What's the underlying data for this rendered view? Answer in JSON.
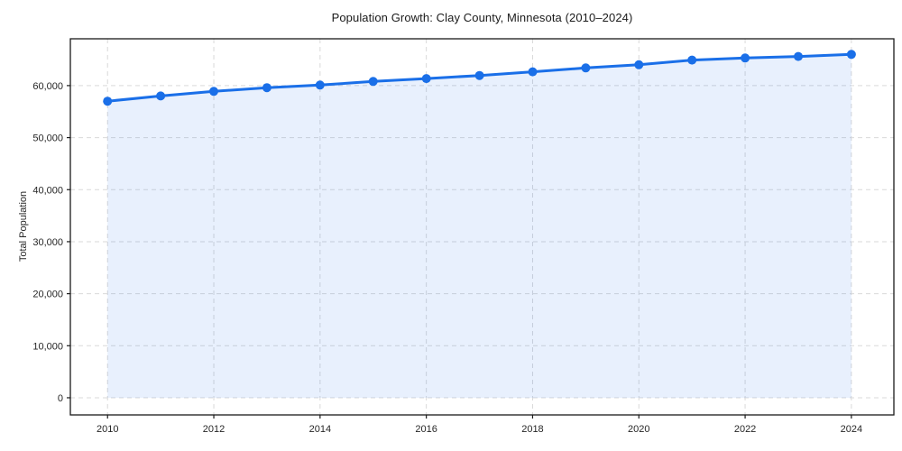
{
  "chart_data": {
    "type": "line",
    "title": "Population Growth: Clay County, Minnesota (2010–2024)",
    "xlabel": "",
    "ylabel": "Total Population",
    "x": [
      2010,
      2011,
      2012,
      2013,
      2014,
      2015,
      2016,
      2017,
      2018,
      2019,
      2020,
      2021,
      2022,
      2023,
      2024
    ],
    "values": [
      57000,
      58000,
      58900,
      59600,
      60100,
      60800,
      61350,
      61950,
      62650,
      63400,
      64000,
      64900,
      65300,
      65600,
      66000
    ],
    "series_name": "Total Population",
    "xticks": [
      2010,
      2012,
      2014,
      2016,
      2018,
      2020,
      2022,
      2024
    ],
    "xtick_labels": [
      "2010",
      "2012",
      "2014",
      "2016",
      "2018",
      "2020",
      "2022",
      "2024"
    ],
    "yticks": [
      0,
      10000,
      20000,
      30000,
      40000,
      50000,
      60000
    ],
    "ytick_labels": [
      "0",
      "10,000",
      "20,000",
      "30,000",
      "40,000",
      "50,000",
      "60,000"
    ],
    "xlim": [
      2009.3,
      2024.8
    ],
    "ylim": [
      -3300,
      69000
    ],
    "fill_baseline": 0,
    "grid": true,
    "legend_position": "none",
    "marker": "circle",
    "colors": {
      "line": "#1a6fe8",
      "marker": "#1a6fe8",
      "fill": "#1a6fe8",
      "fill_opacity": 0.1,
      "grid": "#d9d9d9",
      "spine": "#1a1a1a",
      "tick_text": "#262626",
      "background": "#ffffff"
    }
  }
}
